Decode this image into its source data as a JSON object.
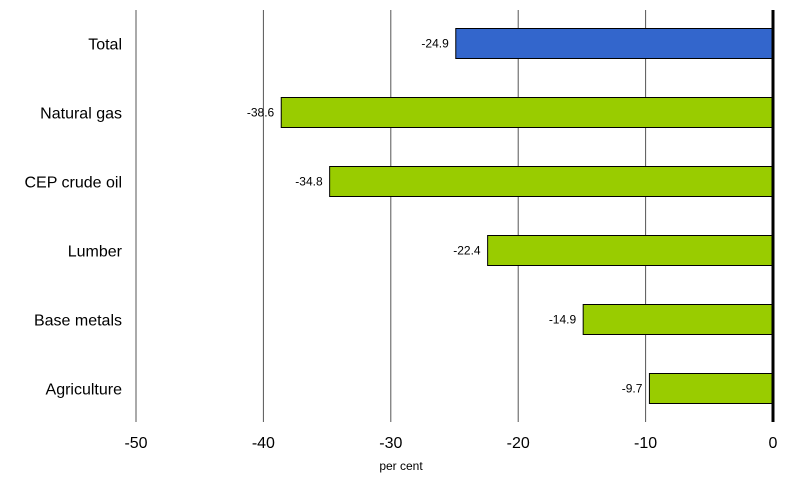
{
  "chart_data": {
    "type": "bar",
    "orientation": "horizontal",
    "categories": [
      "Total",
      "Natural gas",
      "CEP crude oil",
      "Lumber",
      "Base metals",
      "Agriculture"
    ],
    "values": [
      -24.9,
      -38.6,
      -34.8,
      -22.4,
      -14.9,
      -9.7
    ],
    "data_labels": [
      "-24.9",
      "-38.6",
      "-34.8",
      "-22.4",
      "-14.9",
      "-9.7"
    ],
    "bar_colors": [
      "#3366cc",
      "#99cc00",
      "#99cc00",
      "#99cc00",
      "#99cc00",
      "#99cc00"
    ],
    "xlim": [
      -50,
      0
    ],
    "xticks": [
      -50,
      -40,
      -30,
      -20,
      -10,
      0
    ],
    "xtick_labels": [
      "-50",
      "-40",
      "-30",
      "-20",
      "-10",
      "0"
    ],
    "xlabel": "per cent",
    "ylabel": "",
    "title": "",
    "grid": "vertical",
    "legend": "none"
  }
}
